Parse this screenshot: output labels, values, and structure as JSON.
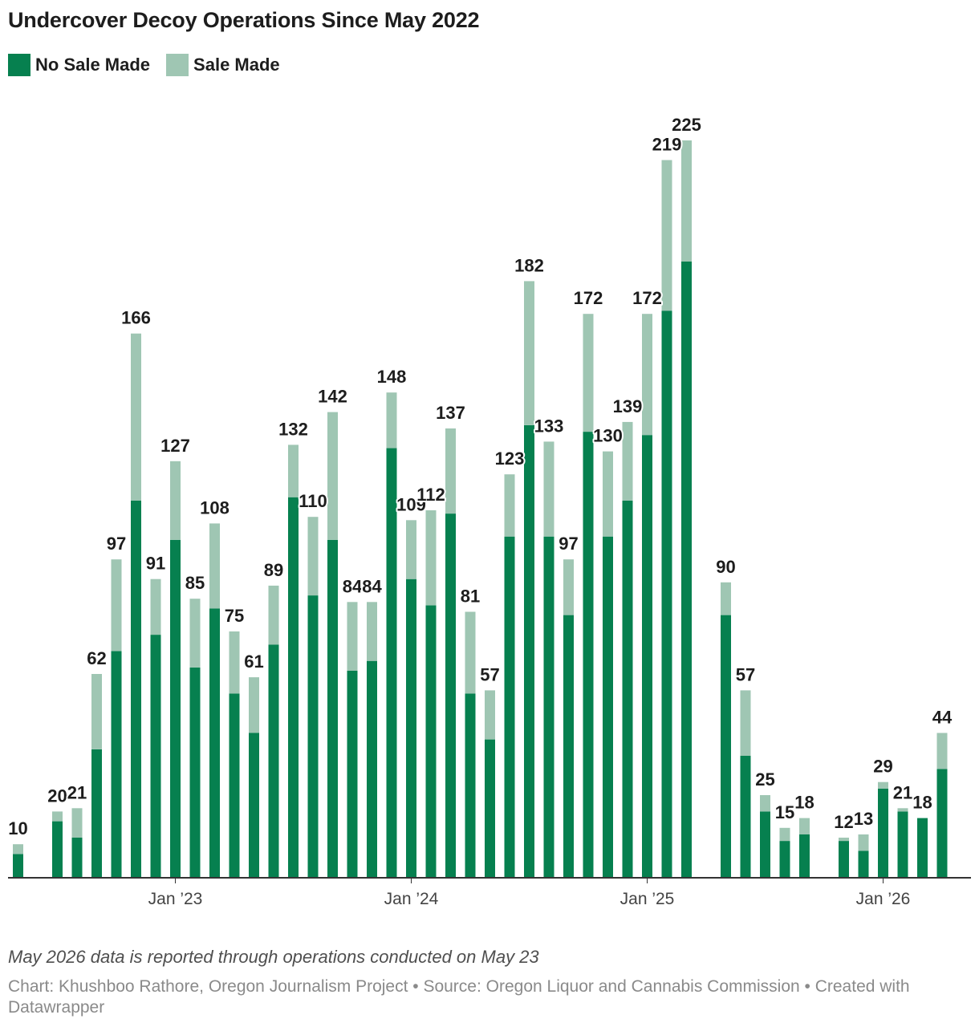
{
  "title": "Undercover Decoy Operations Since May 2022",
  "note": "May 2026 data is reported through operations conducted on May 23",
  "credits": "Chart: Khushboo Rathore, Oregon Journalism Project • Source: Oregon Liquor and Cannabis Commission • Created with Datawrapper",
  "colors": {
    "no_sale": "#06804f",
    "sale": "#9fc6b3",
    "axis": "#333333",
    "label": "#1d1d1d"
  },
  "chart_data": {
    "type": "bar",
    "stacked": true,
    "months": [
      "2022-05",
      "2022-06",
      "2022-07",
      "2022-08",
      "2022-09",
      "2022-10",
      "2022-11",
      "2022-12",
      "2023-01",
      "2023-02",
      "2023-03",
      "2023-04",
      "2023-05",
      "2023-06",
      "2023-07",
      "2023-08",
      "2023-09",
      "2023-10",
      "2023-11",
      "2023-12",
      "2024-01",
      "2024-02",
      "2024-03",
      "2024-04",
      "2024-05",
      "2024-06",
      "2024-07",
      "2024-08",
      "2024-09",
      "2024-10",
      "2024-11",
      "2024-12",
      "2025-01",
      "2025-02",
      "2025-03",
      "2025-04",
      "2025-05",
      "2025-06",
      "2025-07",
      "2025-08",
      "2025-09",
      "2025-10",
      "2025-11",
      "2025-12",
      "2026-01",
      "2026-02",
      "2026-03",
      "2026-04",
      "2026-05"
    ],
    "x_ticks": [
      {
        "month": "2023-01",
        "label": "Jan ’23"
      },
      {
        "month": "2024-01",
        "label": "Jan ’24"
      },
      {
        "month": "2025-01",
        "label": "Jan ’25"
      },
      {
        "month": "2026-01",
        "label": "Jan ’26"
      }
    ],
    "series": [
      {
        "name": "No Sale Made",
        "values": [
          7,
          0,
          17,
          12,
          39,
          69,
          115,
          74,
          103,
          64,
          82,
          56,
          44,
          71,
          116,
          86,
          103,
          63,
          66,
          131,
          91,
          83,
          111,
          56,
          42,
          104,
          138,
          104,
          80,
          136,
          104,
          115,
          135,
          173,
          188,
          0,
          80,
          37,
          20,
          11,
          13,
          0,
          11,
          8,
          27,
          20,
          18,
          33,
          0
        ]
      },
      {
        "name": "Sale Made",
        "values": [
          3,
          0,
          3,
          9,
          23,
          28,
          51,
          17,
          24,
          21,
          26,
          19,
          17,
          18,
          16,
          24,
          39,
          21,
          18,
          17,
          18,
          29,
          26,
          25,
          15,
          19,
          44,
          29,
          17,
          36,
          26,
          24,
          37,
          46,
          37,
          0,
          10,
          20,
          5,
          4,
          5,
          0,
          1,
          5,
          2,
          1,
          0,
          11,
          0
        ]
      }
    ],
    "totals": [
      10,
      0,
      20,
      21,
      62,
      97,
      166,
      91,
      127,
      85,
      108,
      75,
      61,
      89,
      132,
      110,
      142,
      84,
      84,
      148,
      109,
      112,
      137,
      81,
      57,
      123,
      182,
      133,
      97,
      172,
      130,
      139,
      172,
      219,
      225,
      0,
      90,
      57,
      25,
      15,
      18,
      0,
      12,
      13,
      29,
      21,
      18,
      44,
      0
    ],
    "bar_labels": [
      "10",
      "",
      "20",
      "21",
      "62",
      "97",
      "166",
      "91",
      "127",
      "85",
      "108",
      "75",
      "61",
      "89",
      "132",
      "110",
      "142",
      "84",
      "84",
      "148",
      "109",
      "112",
      "137",
      "81",
      "57",
      "123",
      "182",
      "133",
      "97",
      "172",
      "130",
      "139",
      "172",
      "219",
      "225",
      "",
      "90",
      "57",
      "25",
      "15",
      "18",
      "",
      "12",
      "13",
      "29",
      "21",
      "18",
      "44",
      ""
    ],
    "ylim": [
      0,
      225
    ]
  }
}
